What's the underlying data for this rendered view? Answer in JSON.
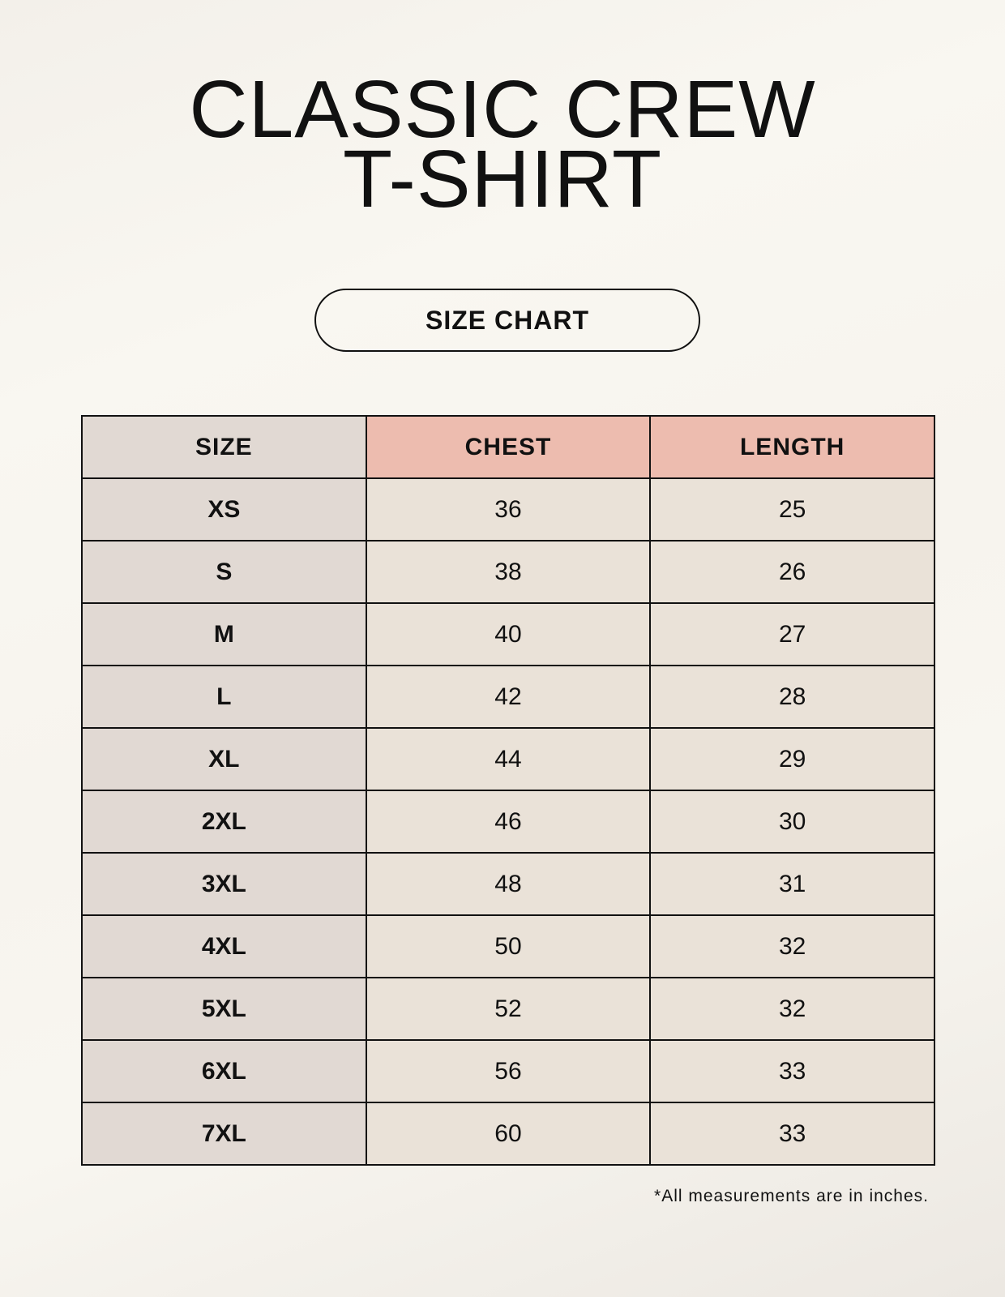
{
  "title": {
    "line1": "CLASSIC CREW",
    "line2": "T-SHIRT"
  },
  "badge": "SIZE CHART",
  "table": {
    "headers": [
      "SIZE",
      "CHEST",
      "LENGTH"
    ],
    "rows": [
      [
        "XS",
        "36",
        "25"
      ],
      [
        "S",
        "38",
        "26"
      ],
      [
        "M",
        "40",
        "27"
      ],
      [
        "L",
        "42",
        "28"
      ],
      [
        "XL",
        "44",
        "29"
      ],
      [
        "2XL",
        "46",
        "30"
      ],
      [
        "3XL",
        "48",
        "31"
      ],
      [
        "4XL",
        "50",
        "32"
      ],
      [
        "5XL",
        "52",
        "32"
      ],
      [
        "6XL",
        "56",
        "33"
      ],
      [
        "7XL",
        "60",
        "33"
      ]
    ]
  },
  "footnote": "*All measurements are in inches.",
  "colors": {
    "size_column": "#e1d9d3",
    "measure_header": "#edbcaf",
    "value_cells": "#eae2d8"
  }
}
